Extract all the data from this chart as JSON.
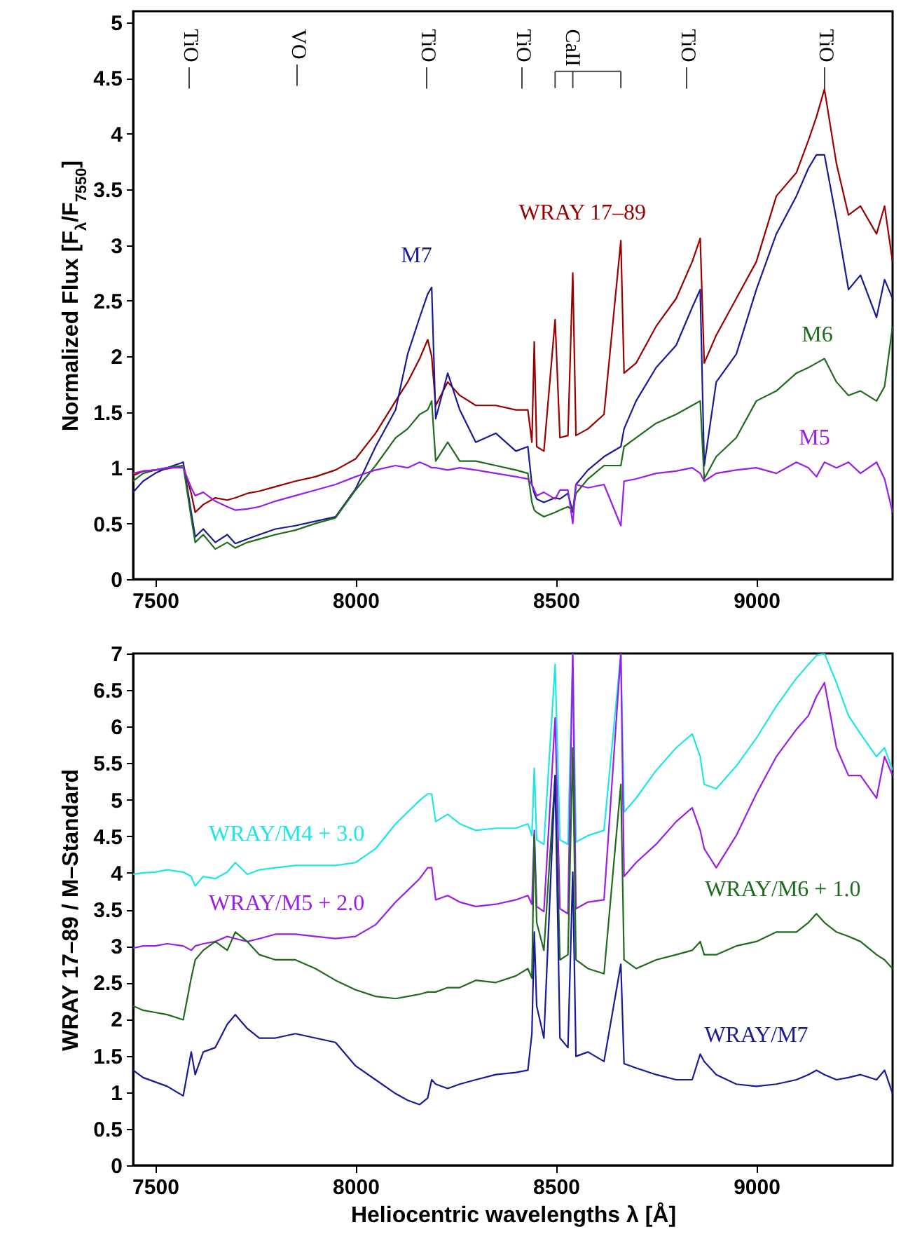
{
  "chart_data": [
    {
      "type": "line",
      "ylabel": "Normalized Flux [F$_{λ}$/F$_{7550}$]",
      "xlim": [
        7445,
        9340
      ],
      "xticks": [
        7500,
        8000,
        8500,
        9000
      ],
      "ylim": [
        0,
        5.1
      ],
      "yticks": [
        0,
        0.5,
        1,
        1.5,
        2,
        2.5,
        3,
        3.5,
        4,
        4.5,
        5
      ],
      "x": [
        7445,
        7470,
        7500,
        7530,
        7570,
        7590,
        7600,
        7620,
        7650,
        7680,
        7700,
        7730,
        7760,
        7800,
        7850,
        7900,
        7950,
        8000,
        8050,
        8100,
        8130,
        8160,
        8180,
        8190,
        8200,
        8230,
        8260,
        8300,
        8350,
        8400,
        8430,
        8440,
        8446,
        8452,
        8470,
        8498,
        8510,
        8530,
        8542,
        8550,
        8580,
        8620,
        8662,
        8670,
        8700,
        8750,
        8800,
        8840,
        8860,
        8870,
        8900,
        8950,
        9000,
        9050,
        9100,
        9130,
        9150,
        9170,
        9200,
        9230,
        9260,
        9300,
        9320,
        9340
      ],
      "annotations": [
        "TiO —",
        "VO —",
        "TiO —",
        "TiO —",
        "CaII",
        "TiO —",
        "TiO —"
      ],
      "series": [
        {
          "name": "WRAY 17–89",
          "color": "#990000",
          "values": [
            0.93,
            0.97,
            0.98,
            0.99,
            1.02,
            0.77,
            0.6,
            0.67,
            0.73,
            0.71,
            0.73,
            0.77,
            0.79,
            0.83,
            0.88,
            0.92,
            0.98,
            1.08,
            1.31,
            1.6,
            1.77,
            1.98,
            2.15,
            2.0,
            1.56,
            1.77,
            1.65,
            1.56,
            1.56,
            1.52,
            1.52,
            1.23,
            2.13,
            1.19,
            1.15,
            2.33,
            1.27,
            1.29,
            2.75,
            1.29,
            1.35,
            1.48,
            3.04,
            1.85,
            1.94,
            2.27,
            2.52,
            2.85,
            3.06,
            1.94,
            2.19,
            2.52,
            2.85,
            3.44,
            3.65,
            3.94,
            4.15,
            4.4,
            3.73,
            3.27,
            3.35,
            3.1,
            3.35,
            2.85
          ]
        },
        {
          "name": "M7",
          "color": "#1a1a99",
          "values": [
            0.78,
            0.88,
            0.95,
            1.0,
            1.05,
            0.6,
            0.38,
            0.45,
            0.33,
            0.4,
            0.32,
            0.36,
            0.4,
            0.45,
            0.48,
            0.52,
            0.56,
            0.81,
            1.19,
            1.52,
            2.02,
            2.35,
            2.56,
            2.62,
            1.44,
            1.85,
            1.52,
            1.23,
            1.31,
            1.15,
            1.19,
            0.85,
            0.77,
            0.72,
            0.69,
            0.73,
            0.72,
            0.77,
            0.6,
            0.85,
            0.98,
            1.1,
            1.19,
            1.35,
            1.6,
            1.9,
            2.1,
            2.44,
            2.6,
            1.02,
            1.77,
            2.02,
            2.6,
            3.1,
            3.44,
            3.69,
            3.81,
            3.81,
            3.23,
            2.6,
            2.73,
            2.35,
            2.69,
            2.52
          ]
        },
        {
          "name": "M6",
          "color": "#1e6b1e",
          "values": [
            0.88,
            0.95,
            0.98,
            1.0,
            1.02,
            0.55,
            0.33,
            0.4,
            0.27,
            0.33,
            0.28,
            0.33,
            0.36,
            0.4,
            0.44,
            0.5,
            0.55,
            0.8,
            1.02,
            1.27,
            1.35,
            1.48,
            1.52,
            1.6,
            1.06,
            1.23,
            1.06,
            1.06,
            1.02,
            0.98,
            0.95,
            0.69,
            0.62,
            0.6,
            0.56,
            0.6,
            0.62,
            0.65,
            0.62,
            0.77,
            0.9,
            1.02,
            1.02,
            1.19,
            1.27,
            1.4,
            1.48,
            1.56,
            1.6,
            0.9,
            1.1,
            1.27,
            1.6,
            1.69,
            1.85,
            1.9,
            1.94,
            1.98,
            1.77,
            1.65,
            1.69,
            1.6,
            1.73,
            2.27
          ]
        },
        {
          "name": "M5",
          "color": "#9a1ee6",
          "values": [
            0.95,
            0.97,
            0.98,
            1.0,
            1.0,
            0.82,
            0.75,
            0.78,
            0.7,
            0.65,
            0.62,
            0.63,
            0.65,
            0.7,
            0.75,
            0.8,
            0.85,
            0.92,
            0.98,
            1.02,
            1.0,
            1.05,
            1.02,
            1.0,
            1.0,
            0.98,
            1.0,
            0.98,
            0.95,
            0.92,
            0.9,
            0.85,
            0.8,
            0.75,
            0.78,
            0.72,
            0.8,
            0.8,
            0.5,
            0.85,
            0.82,
            0.85,
            0.48,
            0.88,
            0.9,
            0.95,
            0.97,
            1.0,
            0.95,
            0.88,
            0.95,
            0.98,
            1.0,
            0.95,
            1.05,
            1.0,
            0.92,
            1.05,
            1.0,
            1.05,
            0.95,
            1.05,
            0.9,
            0.6
          ]
        }
      ]
    },
    {
      "type": "line",
      "xlabel": "Heliocentric wavelengths λ [Å]",
      "ylabel": "WRAY 17–89 / M–Standard",
      "xlim": [
        7445,
        9340
      ],
      "xticks": [
        7500,
        8000,
        8500,
        9000
      ],
      "ylim": [
        0,
        7
      ],
      "yticks": [
        0,
        0.5,
        1,
        1.5,
        2,
        2.5,
        3,
        3.5,
        4,
        4.5,
        5,
        5.5,
        6,
        6.5,
        7
      ],
      "x": [
        7445,
        7470,
        7500,
        7530,
        7570,
        7590,
        7600,
        7620,
        7650,
        7680,
        7700,
        7730,
        7760,
        7800,
        7850,
        7900,
        7950,
        8000,
        8050,
        8100,
        8130,
        8160,
        8180,
        8190,
        8200,
        8230,
        8260,
        8300,
        8350,
        8400,
        8430,
        8440,
        8446,
        8452,
        8470,
        8498,
        8510,
        8530,
        8542,
        8550,
        8580,
        8620,
        8662,
        8670,
        8700,
        8750,
        8800,
        8840,
        8860,
        8870,
        8900,
        8950,
        9000,
        9050,
        9100,
        9130,
        9150,
        9170,
        9200,
        9230,
        9260,
        9300,
        9320,
        9340
      ],
      "series": [
        {
          "name": "WRAY/M4 + 3.0",
          "color": "#1ee6e6",
          "values": [
            3.98,
            4.0,
            4.01,
            4.04,
            4.01,
            3.95,
            3.82,
            3.95,
            3.92,
            4.01,
            4.14,
            3.98,
            4.04,
            4.07,
            4.1,
            4.1,
            4.1,
            4.14,
            4.33,
            4.67,
            4.83,
            4.99,
            5.08,
            5.08,
            4.7,
            4.8,
            4.67,
            4.58,
            4.61,
            4.61,
            4.67,
            4.51,
            5.43,
            4.45,
            4.39,
            6.85,
            4.45,
            4.39,
            7.0,
            4.42,
            4.51,
            4.58,
            7.0,
            4.83,
            5.02,
            5.4,
            5.71,
            5.9,
            5.59,
            5.21,
            5.15,
            5.46,
            5.84,
            6.28,
            6.66,
            6.85,
            6.97,
            7.0,
            6.6,
            6.15,
            5.9,
            5.59,
            5.71,
            5.4
          ]
        },
        {
          "name": "WRAY/M5 + 2.0",
          "color": "#9a1ee6",
          "values": [
            2.97,
            3.0,
            3.0,
            3.03,
            3.0,
            2.94,
            3.0,
            3.03,
            3.06,
            3.13,
            3.1,
            3.06,
            3.1,
            3.16,
            3.16,
            3.13,
            3.1,
            3.13,
            3.29,
            3.6,
            3.76,
            3.92,
            4.07,
            4.07,
            3.63,
            3.69,
            3.6,
            3.54,
            3.57,
            3.63,
            3.69,
            3.57,
            4.58,
            3.54,
            3.47,
            6.12,
            3.51,
            3.44,
            7.0,
            3.51,
            3.6,
            3.63,
            7.0,
            3.95,
            4.14,
            4.39,
            4.7,
            4.89,
            4.58,
            4.33,
            4.07,
            4.51,
            5.08,
            5.59,
            5.96,
            6.15,
            6.41,
            6.6,
            5.71,
            5.33,
            5.33,
            5.02,
            5.59,
            5.33
          ]
        },
        {
          "name": "WRAY/M6 + 1.0",
          "color": "#1e6b1e",
          "values": [
            2.18,
            2.12,
            2.09,
            2.06,
            1.99,
            2.56,
            2.81,
            2.94,
            3.06,
            2.94,
            3.19,
            3.06,
            2.88,
            2.81,
            2.81,
            2.69,
            2.53,
            2.4,
            2.31,
            2.28,
            2.31,
            2.34,
            2.37,
            2.37,
            2.37,
            2.43,
            2.43,
            2.53,
            2.5,
            2.59,
            2.69,
            2.56,
            4.51,
            3.32,
            2.94,
            5.33,
            2.81,
            2.88,
            5.71,
            2.81,
            2.69,
            2.62,
            5.21,
            2.81,
            2.69,
            2.81,
            2.88,
            2.94,
            3.06,
            2.88,
            2.88,
            3.0,
            3.06,
            3.19,
            3.19,
            3.32,
            3.44,
            3.32,
            3.19,
            3.13,
            3.06,
            2.88,
            2.81,
            2.69
          ]
        },
        {
          "name": "WRAY/M7",
          "color": "#1a1a99",
          "values": [
            1.3,
            1.2,
            1.14,
            1.08,
            0.95,
            1.55,
            1.24,
            1.55,
            1.61,
            1.93,
            2.06,
            1.87,
            1.74,
            1.74,
            1.8,
            1.74,
            1.68,
            1.36,
            1.17,
            0.98,
            0.89,
            0.83,
            0.92,
            1.17,
            1.11,
            1.05,
            1.11,
            1.17,
            1.24,
            1.27,
            1.3,
            1.8,
            3.19,
            2.18,
            1.74,
            5.33,
            1.74,
            1.61,
            4.01,
            1.49,
            1.55,
            1.42,
            2.75,
            1.39,
            1.33,
            1.24,
            1.17,
            1.17,
            1.52,
            1.42,
            1.24,
            1.11,
            1.08,
            1.11,
            1.17,
            1.24,
            1.3,
            1.24,
            1.17,
            1.2,
            1.24,
            1.17,
            1.3,
            0.98
          ]
        }
      ]
    }
  ]
}
